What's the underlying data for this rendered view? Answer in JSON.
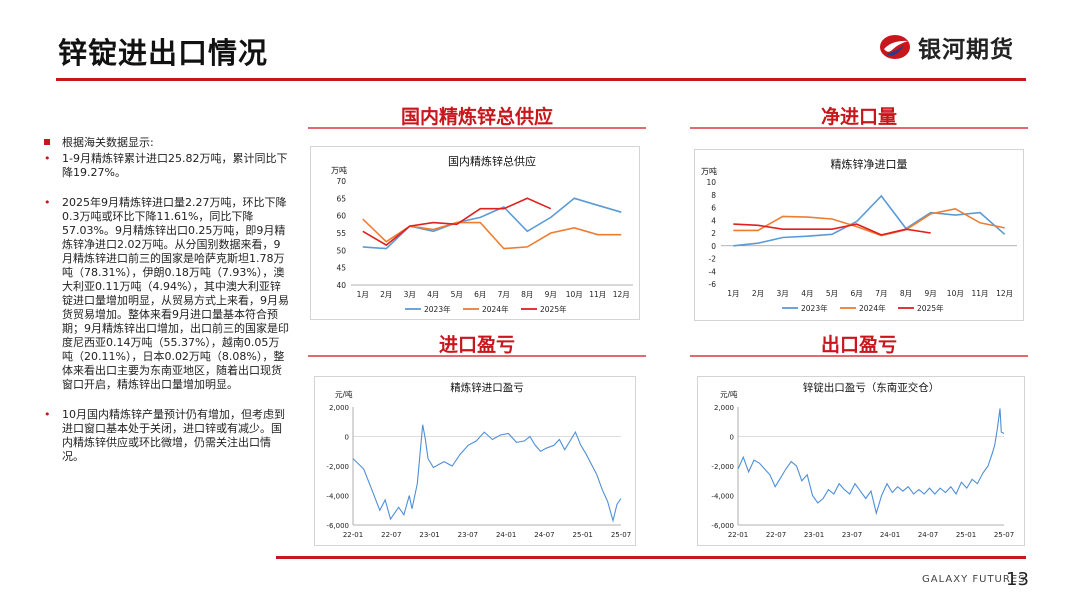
{
  "page": {
    "title": "锌锭进出口情况",
    "brand": "银河期货",
    "footer": "GALAXY FUTURES",
    "page_number": "13",
    "accent_color": "#c8161d"
  },
  "bullets": [
    {
      "marker": "■",
      "text": "根据海关数据显示:"
    },
    {
      "marker": "•",
      "text": "1-9月精炼锌累计进口25.82万吨，累计同比下降19.27%。"
    },
    {
      "marker": "•",
      "text": "2025年9月精炼锌进口量2.27万吨，环比下降0.3万吨或环比下降11.61%，同比下降57.03%。9月精炼锌出口0.25万吨，即9月精炼锌净进口2.02万吨。从分国别数据来看，9月精炼锌进口前三的国家是哈萨克斯坦1.78万吨（78.31%），伊朗0.18万吨（7.93%），澳大利亚0.11万吨（4.94%），其中澳大利亚锌锭进口量增加明显，从贸易方式上来看，9月易货贸易增加。整体来看9月进口量基本符合预期；9月精炼锌出口增加，出口前三的国家是印度尼西亚0.14万吨（55.37%），越南0.05万吨（20.11%），日本0.02万吨（8.08%），整体来看出口主要为东南亚地区，随着出口现货窗口开启，精炼锌出口量增加明显。"
    },
    {
      "marker": "•",
      "text": "10月国内精炼锌产量预计仍有增加，但考虑到进口窗口基本处于关闭，进口锌或有减少。国内精炼锌供应或环比微增，仍需关注出口情况。"
    }
  ],
  "sections": {
    "supply": "国内精炼锌总供应",
    "net_import": "净进口量",
    "import_pl": "进口盈亏",
    "export_pl": "出口盈亏"
  },
  "chart_data": [
    {
      "type": "line",
      "title": "国内精炼锌总供应",
      "ylabel": "万吨",
      "categories": [
        "1月",
        "2月",
        "3月",
        "4月",
        "5月",
        "6月",
        "7月",
        "8月",
        "9月",
        "10月",
        "11月",
        "12月"
      ],
      "ylim": [
        40,
        70
      ],
      "yticks": [
        40,
        45,
        50,
        55,
        60,
        65,
        70
      ],
      "series": [
        {
          "name": "2023年",
          "color": "#5b9bd5",
          "values": [
            51,
            50.5,
            57,
            55.5,
            58,
            59.5,
            62.5,
            55.5,
            59.5,
            65,
            63,
            61
          ]
        },
        {
          "name": "2024年",
          "color": "#ed7d31",
          "values": [
            59,
            52.5,
            57,
            56,
            58,
            58,
            50.5,
            51,
            55,
            56.5,
            54.5,
            54.5
          ]
        },
        {
          "name": "2025年",
          "color": "#e02020",
          "values": [
            55.5,
            51.5,
            57,
            58,
            57.5,
            62,
            62,
            65,
            62,
            null,
            null,
            null
          ]
        }
      ]
    },
    {
      "type": "line",
      "title": "精炼锌净进口量",
      "ylabel": "万吨",
      "categories": [
        "1月",
        "2月",
        "3月",
        "4月",
        "5月",
        "6月",
        "7月",
        "8月",
        "9月",
        "10月",
        "11月",
        "12月"
      ],
      "ylim": [
        -6,
        10
      ],
      "yticks": [
        -6,
        -4,
        -2,
        0,
        2,
        4,
        6,
        8,
        10
      ],
      "series": [
        {
          "name": "2023年",
          "color": "#5b9bd5",
          "values": [
            0,
            0.4,
            1.3,
            1.5,
            1.8,
            3.8,
            7.8,
            2.7,
            5.2,
            4.8,
            5.2,
            1.8
          ]
        },
        {
          "name": "2024年",
          "color": "#ed7d31",
          "values": [
            2.4,
            2.4,
            4.6,
            4.5,
            4.2,
            3,
            1.6,
            2.5,
            5,
            5.8,
            3.6,
            2.8
          ]
        },
        {
          "name": "2025年",
          "color": "#e02020",
          "values": [
            3.4,
            3.2,
            2.6,
            2.6,
            2.6,
            3.4,
            1.7,
            2.6,
            2,
            null,
            null,
            null
          ]
        }
      ]
    },
    {
      "type": "line",
      "title": "精炼锌进口盈亏",
      "ylabel": "元/吨",
      "xticks": [
        "22-01",
        "22-07",
        "23-01",
        "23-07",
        "24-01",
        "24-07",
        "25-01",
        "25-07"
      ],
      "ylim": [
        -6000,
        2000
      ],
      "yticks": [
        -6000,
        -4000,
        -2000,
        0,
        2000
      ],
      "color": "#4f8fd6",
      "points": [
        [
          0,
          -1500
        ],
        [
          0.04,
          -2200
        ],
        [
          0.07,
          -3600
        ],
        [
          0.1,
          -5000
        ],
        [
          0.12,
          -4300
        ],
        [
          0.14,
          -5600
        ],
        [
          0.17,
          -4800
        ],
        [
          0.19,
          -5300
        ],
        [
          0.21,
          -4000
        ],
        [
          0.22,
          -4900
        ],
        [
          0.24,
          -3200
        ],
        [
          0.25,
          -1200
        ],
        [
          0.26,
          800
        ],
        [
          0.27,
          -200
        ],
        [
          0.28,
          -1500
        ],
        [
          0.3,
          -2100
        ],
        [
          0.32,
          -1900
        ],
        [
          0.34,
          -1700
        ],
        [
          0.37,
          -2000
        ],
        [
          0.4,
          -1200
        ],
        [
          0.43,
          -600
        ],
        [
          0.46,
          -300
        ],
        [
          0.49,
          300
        ],
        [
          0.52,
          -200
        ],
        [
          0.55,
          100
        ],
        [
          0.58,
          200
        ],
        [
          0.61,
          -400
        ],
        [
          0.64,
          -300
        ],
        [
          0.66,
          0
        ],
        [
          0.68,
          -600
        ],
        [
          0.7,
          -1000
        ],
        [
          0.72,
          -800
        ],
        [
          0.75,
          -600
        ],
        [
          0.77,
          -200
        ],
        [
          0.79,
          -900
        ],
        [
          0.81,
          -300
        ],
        [
          0.83,
          300
        ],
        [
          0.85,
          -600
        ],
        [
          0.87,
          -1200
        ],
        [
          0.89,
          -1900
        ],
        [
          0.91,
          -2600
        ],
        [
          0.93,
          -3600
        ],
        [
          0.95,
          -4400
        ],
        [
          0.97,
          -5700
        ],
        [
          0.985,
          -4600
        ],
        [
          1.0,
          -4200
        ]
      ]
    },
    {
      "type": "line",
      "title": "锌锭出口盈亏（东南亚交仓）",
      "ylabel": "元/吨",
      "xticks": [
        "22-01",
        "22-07",
        "23-01",
        "23-07",
        "24-01",
        "24-07",
        "25-01",
        "25-07"
      ],
      "ylim": [
        -6000,
        2000
      ],
      "yticks": [
        -6000,
        -4000,
        -2000,
        0,
        2000
      ],
      "color": "#4f8fd6",
      "points": [
        [
          0,
          -2200
        ],
        [
          0.02,
          -1400
        ],
        [
          0.04,
          -2400
        ],
        [
          0.06,
          -1600
        ],
        [
          0.08,
          -1800
        ],
        [
          0.1,
          -2200
        ],
        [
          0.12,
          -2600
        ],
        [
          0.14,
          -3400
        ],
        [
          0.16,
          -2800
        ],
        [
          0.18,
          -2200
        ],
        [
          0.2,
          -1700
        ],
        [
          0.22,
          -2000
        ],
        [
          0.24,
          -3000
        ],
        [
          0.26,
          -2600
        ],
        [
          0.28,
          -4000
        ],
        [
          0.3,
          -4500
        ],
        [
          0.32,
          -4200
        ],
        [
          0.34,
          -3600
        ],
        [
          0.36,
          -3900
        ],
        [
          0.38,
          -3200
        ],
        [
          0.4,
          -3600
        ],
        [
          0.42,
          -3900
        ],
        [
          0.44,
          -3200
        ],
        [
          0.46,
          -3700
        ],
        [
          0.48,
          -4200
        ],
        [
          0.5,
          -3700
        ],
        [
          0.52,
          -5200
        ],
        [
          0.54,
          -4000
        ],
        [
          0.56,
          -3200
        ],
        [
          0.58,
          -3800
        ],
        [
          0.6,
          -3400
        ],
        [
          0.62,
          -3700
        ],
        [
          0.64,
          -3400
        ],
        [
          0.66,
          -3900
        ],
        [
          0.68,
          -3600
        ],
        [
          0.7,
          -3900
        ],
        [
          0.72,
          -3500
        ],
        [
          0.74,
          -3900
        ],
        [
          0.76,
          -3500
        ],
        [
          0.78,
          -3800
        ],
        [
          0.8,
          -3400
        ],
        [
          0.82,
          -3900
        ],
        [
          0.84,
          -3100
        ],
        [
          0.86,
          -3500
        ],
        [
          0.88,
          -2900
        ],
        [
          0.9,
          -3200
        ],
        [
          0.92,
          -2500
        ],
        [
          0.94,
          -2000
        ],
        [
          0.955,
          -1200
        ],
        [
          0.965,
          -600
        ],
        [
          0.975,
          500
        ],
        [
          0.985,
          1900
        ],
        [
          0.99,
          300
        ],
        [
          1.0,
          200
        ]
      ]
    }
  ]
}
